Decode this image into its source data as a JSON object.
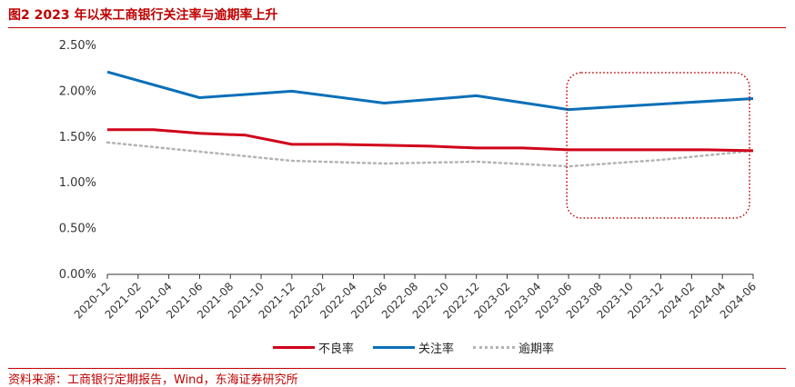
{
  "figure": {
    "title": "图2 2023 年以来工商银行关注率与逾期率上升",
    "source": "资料来源：工商银行定期报告，Wind，东海证券研究所",
    "accent_color": "#c00000"
  },
  "chart_data": {
    "type": "line",
    "x": [
      "2020-12",
      "2021-02",
      "2021-04",
      "2021-06",
      "2021-08",
      "2021-10",
      "2021-12",
      "2022-02",
      "2022-04",
      "2022-06",
      "2022-08",
      "2022-10",
      "2022-12",
      "2023-02",
      "2023-04",
      "2023-06",
      "2023-08",
      "2023-10",
      "2023-12",
      "2024-02",
      "2024-04",
      "2024-06"
    ],
    "ylim": [
      0,
      2.5
    ],
    "yticks": [
      "0.00%",
      "0.50%",
      "1.00%",
      "1.50%",
      "2.00%",
      "2.50%"
    ],
    "grid": false,
    "legend_position": "bottom",
    "series": [
      {
        "name": "不良率",
        "color": "#d0021b",
        "style": "solid",
        "points": [
          [
            "2020-12",
            1.58
          ],
          [
            "2021-03",
            1.58
          ],
          [
            "2021-06",
            1.54
          ],
          [
            "2021-09",
            1.52
          ],
          [
            "2021-12",
            1.42
          ],
          [
            "2022-03",
            1.42
          ],
          [
            "2022-06",
            1.41
          ],
          [
            "2022-09",
            1.4
          ],
          [
            "2022-12",
            1.38
          ],
          [
            "2023-03",
            1.38
          ],
          [
            "2023-06",
            1.36
          ],
          [
            "2023-09",
            1.36
          ],
          [
            "2023-12",
            1.36
          ],
          [
            "2024-03",
            1.36
          ],
          [
            "2024-06",
            1.35
          ]
        ]
      },
      {
        "name": "关注率",
        "color": "#0b6fb8",
        "style": "solid",
        "points": [
          [
            "2020-12",
            2.21
          ],
          [
            "2021-06",
            1.93
          ],
          [
            "2021-12",
            2.0
          ],
          [
            "2022-06",
            1.87
          ],
          [
            "2022-12",
            1.95
          ],
          [
            "2023-06",
            1.8
          ],
          [
            "2024-06",
            1.92
          ]
        ]
      },
      {
        "name": "逾期率",
        "color": "#b3b3b3",
        "style": "dotted",
        "points": [
          [
            "2020-12",
            1.44
          ],
          [
            "2021-06",
            1.34
          ],
          [
            "2021-12",
            1.24
          ],
          [
            "2022-06",
            1.21
          ],
          [
            "2022-12",
            1.23
          ],
          [
            "2023-06",
            1.18
          ],
          [
            "2023-12",
            1.25
          ],
          [
            "2024-06",
            1.35
          ]
        ]
      }
    ],
    "annotation": {
      "type": "highlight-box",
      "from": "2023-06",
      "to": "2024-06",
      "color": "#c00000",
      "style": "dotted",
      "shape": "rounded"
    }
  }
}
